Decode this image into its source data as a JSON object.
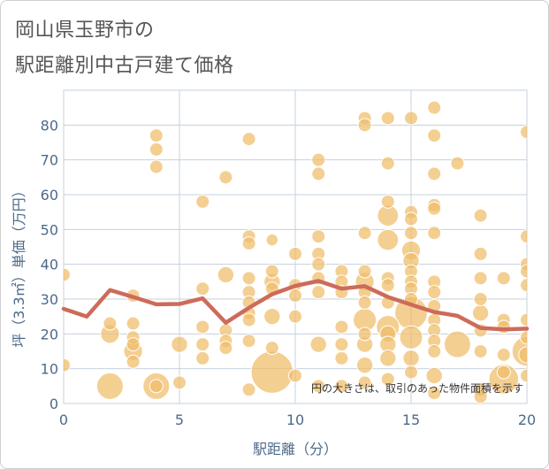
{
  "title_lines": [
    "岡山県玉野市の",
    "駅距離別中古戸建て価格"
  ],
  "chart_data": {
    "type": "scatter",
    "title": "岡山県玉野市の駅距離別中古戸建て価格",
    "xlabel": "駅距離（分）",
    "ylabel": "坪（3.3㎡）単価（万円）",
    "xlim": [
      0,
      20
    ],
    "ylim": [
      0,
      90
    ],
    "xticks": [
      0,
      5,
      10,
      15,
      20
    ],
    "yticks": [
      0,
      10,
      20,
      30,
      40,
      50,
      60,
      70,
      80
    ],
    "grid": true,
    "annotation": "円の大きさは、取引のあった物件面積を示す",
    "colors": {
      "bubble": "#f0bc68",
      "line": "#cd6b5a",
      "grid": "#c6d0dc",
      "axis_text": "#4d6a8a"
    },
    "series": [
      {
        "name": "average",
        "type": "line",
        "x": [
          0,
          1,
          2,
          3,
          4,
          5,
          6,
          7,
          8,
          9,
          10,
          11,
          12,
          13,
          14,
          15,
          16,
          17,
          18,
          19,
          20
        ],
        "values": [
          27.2,
          25,
          32.6,
          30.6,
          28.5,
          28.6,
          30.2,
          23.2,
          27.5,
          31.4,
          33.8,
          35.2,
          33,
          33.7,
          30.6,
          28.4,
          26.3,
          25.2,
          21.7,
          21.3,
          21.5
        ]
      },
      {
        "name": "transactions",
        "type": "scatter",
        "points": [
          {
            "x": 0,
            "y": 37,
            "size": 1
          },
          {
            "x": 0,
            "y": 11,
            "size": 1
          },
          {
            "x": 2,
            "y": 23,
            "size": 1
          },
          {
            "x": 2,
            "y": 20,
            "size": 2
          },
          {
            "x": 2,
            "y": 5,
            "size": 4
          },
          {
            "x": 3,
            "y": 31,
            "size": 1
          },
          {
            "x": 3,
            "y": 23,
            "size": 1
          },
          {
            "x": 3,
            "y": 19,
            "size": 1
          },
          {
            "x": 3,
            "y": 17,
            "size": 1
          },
          {
            "x": 3,
            "y": 15,
            "size": 2
          },
          {
            "x": 3,
            "y": 12,
            "size": 1
          },
          {
            "x": 4,
            "y": 77,
            "size": 1
          },
          {
            "x": 4,
            "y": 73,
            "size": 1
          },
          {
            "x": 4,
            "y": 68,
            "size": 1
          },
          {
            "x": 4,
            "y": 5,
            "size": 4
          },
          {
            "x": 4,
            "y": 5,
            "size": 1
          },
          {
            "x": 5,
            "y": 17,
            "size": 1.5
          },
          {
            "x": 5,
            "y": 6,
            "size": 1
          },
          {
            "x": 6,
            "y": 58,
            "size": 1
          },
          {
            "x": 6,
            "y": 33,
            "size": 1
          },
          {
            "x": 6,
            "y": 22,
            "size": 1
          },
          {
            "x": 6,
            "y": 17,
            "size": 1
          },
          {
            "x": 6,
            "y": 13,
            "size": 1
          },
          {
            "x": 7,
            "y": 65,
            "size": 1
          },
          {
            "x": 7,
            "y": 37,
            "size": 1.5
          },
          {
            "x": 7,
            "y": 21,
            "size": 1
          },
          {
            "x": 7,
            "y": 18,
            "size": 1
          },
          {
            "x": 7,
            "y": 16,
            "size": 1
          },
          {
            "x": 8,
            "y": 76,
            "size": 1
          },
          {
            "x": 8,
            "y": 48,
            "size": 1
          },
          {
            "x": 8,
            "y": 46,
            "size": 1
          },
          {
            "x": 8,
            "y": 36,
            "size": 1
          },
          {
            "x": 8,
            "y": 32,
            "size": 1
          },
          {
            "x": 8,
            "y": 29,
            "size": 1
          },
          {
            "x": 8,
            "y": 26,
            "size": 1
          },
          {
            "x": 8,
            "y": 24,
            "size": 1
          },
          {
            "x": 8,
            "y": 18,
            "size": 1
          },
          {
            "x": 8,
            "y": 4,
            "size": 1
          },
          {
            "x": 9,
            "y": 47,
            "size": 0.8
          },
          {
            "x": 9,
            "y": 38,
            "size": 1
          },
          {
            "x": 9,
            "y": 35,
            "size": 1.5
          },
          {
            "x": 9,
            "y": 33,
            "size": 1
          },
          {
            "x": 9,
            "y": 25,
            "size": 1.5
          },
          {
            "x": 9,
            "y": 16,
            "size": 1
          },
          {
            "x": 9,
            "y": 9,
            "size": 10
          },
          {
            "x": 10,
            "y": 43,
            "size": 1
          },
          {
            "x": 10,
            "y": 34,
            "size": 1
          },
          {
            "x": 10,
            "y": 31,
            "size": 1
          },
          {
            "x": 10,
            "y": 25,
            "size": 1
          },
          {
            "x": 10,
            "y": 8,
            "size": 1
          },
          {
            "x": 11,
            "y": 70,
            "size": 1
          },
          {
            "x": 11,
            "y": 66,
            "size": 1
          },
          {
            "x": 11,
            "y": 48,
            "size": 1
          },
          {
            "x": 11,
            "y": 43,
            "size": 1
          },
          {
            "x": 11,
            "y": 40,
            "size": 1
          },
          {
            "x": 11,
            "y": 36,
            "size": 1
          },
          {
            "x": 11,
            "y": 32,
            "size": 1
          },
          {
            "x": 11,
            "y": 17,
            "size": 1.5
          },
          {
            "x": 11,
            "y": 5,
            "size": 1
          },
          {
            "x": 12,
            "y": 38,
            "size": 1
          },
          {
            "x": 12,
            "y": 35,
            "size": 1
          },
          {
            "x": 12,
            "y": 32,
            "size": 1
          },
          {
            "x": 12,
            "y": 22,
            "size": 1
          },
          {
            "x": 12,
            "y": 17,
            "size": 1
          },
          {
            "x": 12,
            "y": 13,
            "size": 1
          },
          {
            "x": 12,
            "y": 5,
            "size": 1
          },
          {
            "x": 13,
            "y": 82,
            "size": 1
          },
          {
            "x": 13,
            "y": 80,
            "size": 1
          },
          {
            "x": 13,
            "y": 49,
            "size": 1
          },
          {
            "x": 13,
            "y": 38,
            "size": 1
          },
          {
            "x": 13,
            "y": 35,
            "size": 2
          },
          {
            "x": 13,
            "y": 32,
            "size": 1
          },
          {
            "x": 13,
            "y": 29,
            "size": 1
          },
          {
            "x": 13,
            "y": 24,
            "size": 3
          },
          {
            "x": 13,
            "y": 20,
            "size": 1
          },
          {
            "x": 13,
            "y": 17,
            "size": 1.5
          },
          {
            "x": 13,
            "y": 11,
            "size": 1.5
          },
          {
            "x": 13,
            "y": 6,
            "size": 1
          },
          {
            "x": 14,
            "y": 82,
            "size": 1
          },
          {
            "x": 14,
            "y": 69,
            "size": 1
          },
          {
            "x": 14,
            "y": 58,
            "size": 1
          },
          {
            "x": 14,
            "y": 54,
            "size": 2.5
          },
          {
            "x": 14,
            "y": 47,
            "size": 2.5
          },
          {
            "x": 14,
            "y": 36,
            "size": 1
          },
          {
            "x": 14,
            "y": 34,
            "size": 1
          },
          {
            "x": 14,
            "y": 29,
            "size": 1
          },
          {
            "x": 14,
            "y": 22,
            "size": 3
          },
          {
            "x": 14,
            "y": 20,
            "size": 1.5
          },
          {
            "x": 14,
            "y": 17,
            "size": 1.5
          },
          {
            "x": 14,
            "y": 13,
            "size": 1.5
          },
          {
            "x": 14,
            "y": 7,
            "size": 1
          },
          {
            "x": 15,
            "y": 82,
            "size": 1
          },
          {
            "x": 15,
            "y": 55,
            "size": 1
          },
          {
            "x": 15,
            "y": 53,
            "size": 1
          },
          {
            "x": 15,
            "y": 49,
            "size": 1
          },
          {
            "x": 15,
            "y": 44,
            "size": 2
          },
          {
            "x": 15,
            "y": 41,
            "size": 1.5
          },
          {
            "x": 15,
            "y": 38,
            "size": 1
          },
          {
            "x": 15,
            "y": 35,
            "size": 1
          },
          {
            "x": 15,
            "y": 33,
            "size": 1
          },
          {
            "x": 15,
            "y": 30,
            "size": 1
          },
          {
            "x": 15,
            "y": 26,
            "size": 6
          },
          {
            "x": 15,
            "y": 19,
            "size": 3
          },
          {
            "x": 15,
            "y": 13,
            "size": 1.5
          },
          {
            "x": 15,
            "y": 9,
            "size": 1
          },
          {
            "x": 16,
            "y": 85,
            "size": 1
          },
          {
            "x": 16,
            "y": 77,
            "size": 1
          },
          {
            "x": 16,
            "y": 66,
            "size": 1
          },
          {
            "x": 16,
            "y": 57,
            "size": 1
          },
          {
            "x": 16,
            "y": 56,
            "size": 1
          },
          {
            "x": 16,
            "y": 49,
            "size": 1
          },
          {
            "x": 16,
            "y": 35,
            "size": 1
          },
          {
            "x": 16,
            "y": 32,
            "size": 1
          },
          {
            "x": 16,
            "y": 28,
            "size": 1
          },
          {
            "x": 16,
            "y": 24,
            "size": 1
          },
          {
            "x": 16,
            "y": 21,
            "size": 1
          },
          {
            "x": 16,
            "y": 18,
            "size": 1
          },
          {
            "x": 16,
            "y": 15,
            "size": 1
          },
          {
            "x": 16,
            "y": 8,
            "size": 1.5
          },
          {
            "x": 16,
            "y": 3,
            "size": 1
          },
          {
            "x": 17,
            "y": 69,
            "size": 1
          },
          {
            "x": 17,
            "y": 17,
            "size": 4
          },
          {
            "x": 18,
            "y": 54,
            "size": 1
          },
          {
            "x": 18,
            "y": 43,
            "size": 1
          },
          {
            "x": 18,
            "y": 36,
            "size": 1
          },
          {
            "x": 18,
            "y": 30,
            "size": 1
          },
          {
            "x": 18,
            "y": 26,
            "size": 1.5
          },
          {
            "x": 18,
            "y": 21,
            "size": 1
          },
          {
            "x": 18,
            "y": 15,
            "size": 1
          },
          {
            "x": 18,
            "y": 4,
            "size": 1
          },
          {
            "x": 18,
            "y": 2,
            "size": 1
          },
          {
            "x": 19,
            "y": 36,
            "size": 1
          },
          {
            "x": 19,
            "y": 24,
            "size": 1
          },
          {
            "x": 19,
            "y": 22,
            "size": 1
          },
          {
            "x": 19,
            "y": 14,
            "size": 1
          },
          {
            "x": 19,
            "y": 9,
            "size": 1
          },
          {
            "x": 19,
            "y": 7,
            "size": 5
          },
          {
            "x": 20,
            "y": 78,
            "size": 1
          },
          {
            "x": 20,
            "y": 48,
            "size": 1
          },
          {
            "x": 20,
            "y": 40,
            "size": 1
          },
          {
            "x": 20,
            "y": 38,
            "size": 1
          },
          {
            "x": 20,
            "y": 34,
            "size": 1
          },
          {
            "x": 20,
            "y": 24,
            "size": 1
          },
          {
            "x": 20,
            "y": 19,
            "size": 1
          },
          {
            "x": 20,
            "y": 15,
            "size": 5
          },
          {
            "x": 20,
            "y": 14,
            "size": 1.5
          },
          {
            "x": 20,
            "y": 8,
            "size": 1
          }
        ]
      }
    ]
  }
}
